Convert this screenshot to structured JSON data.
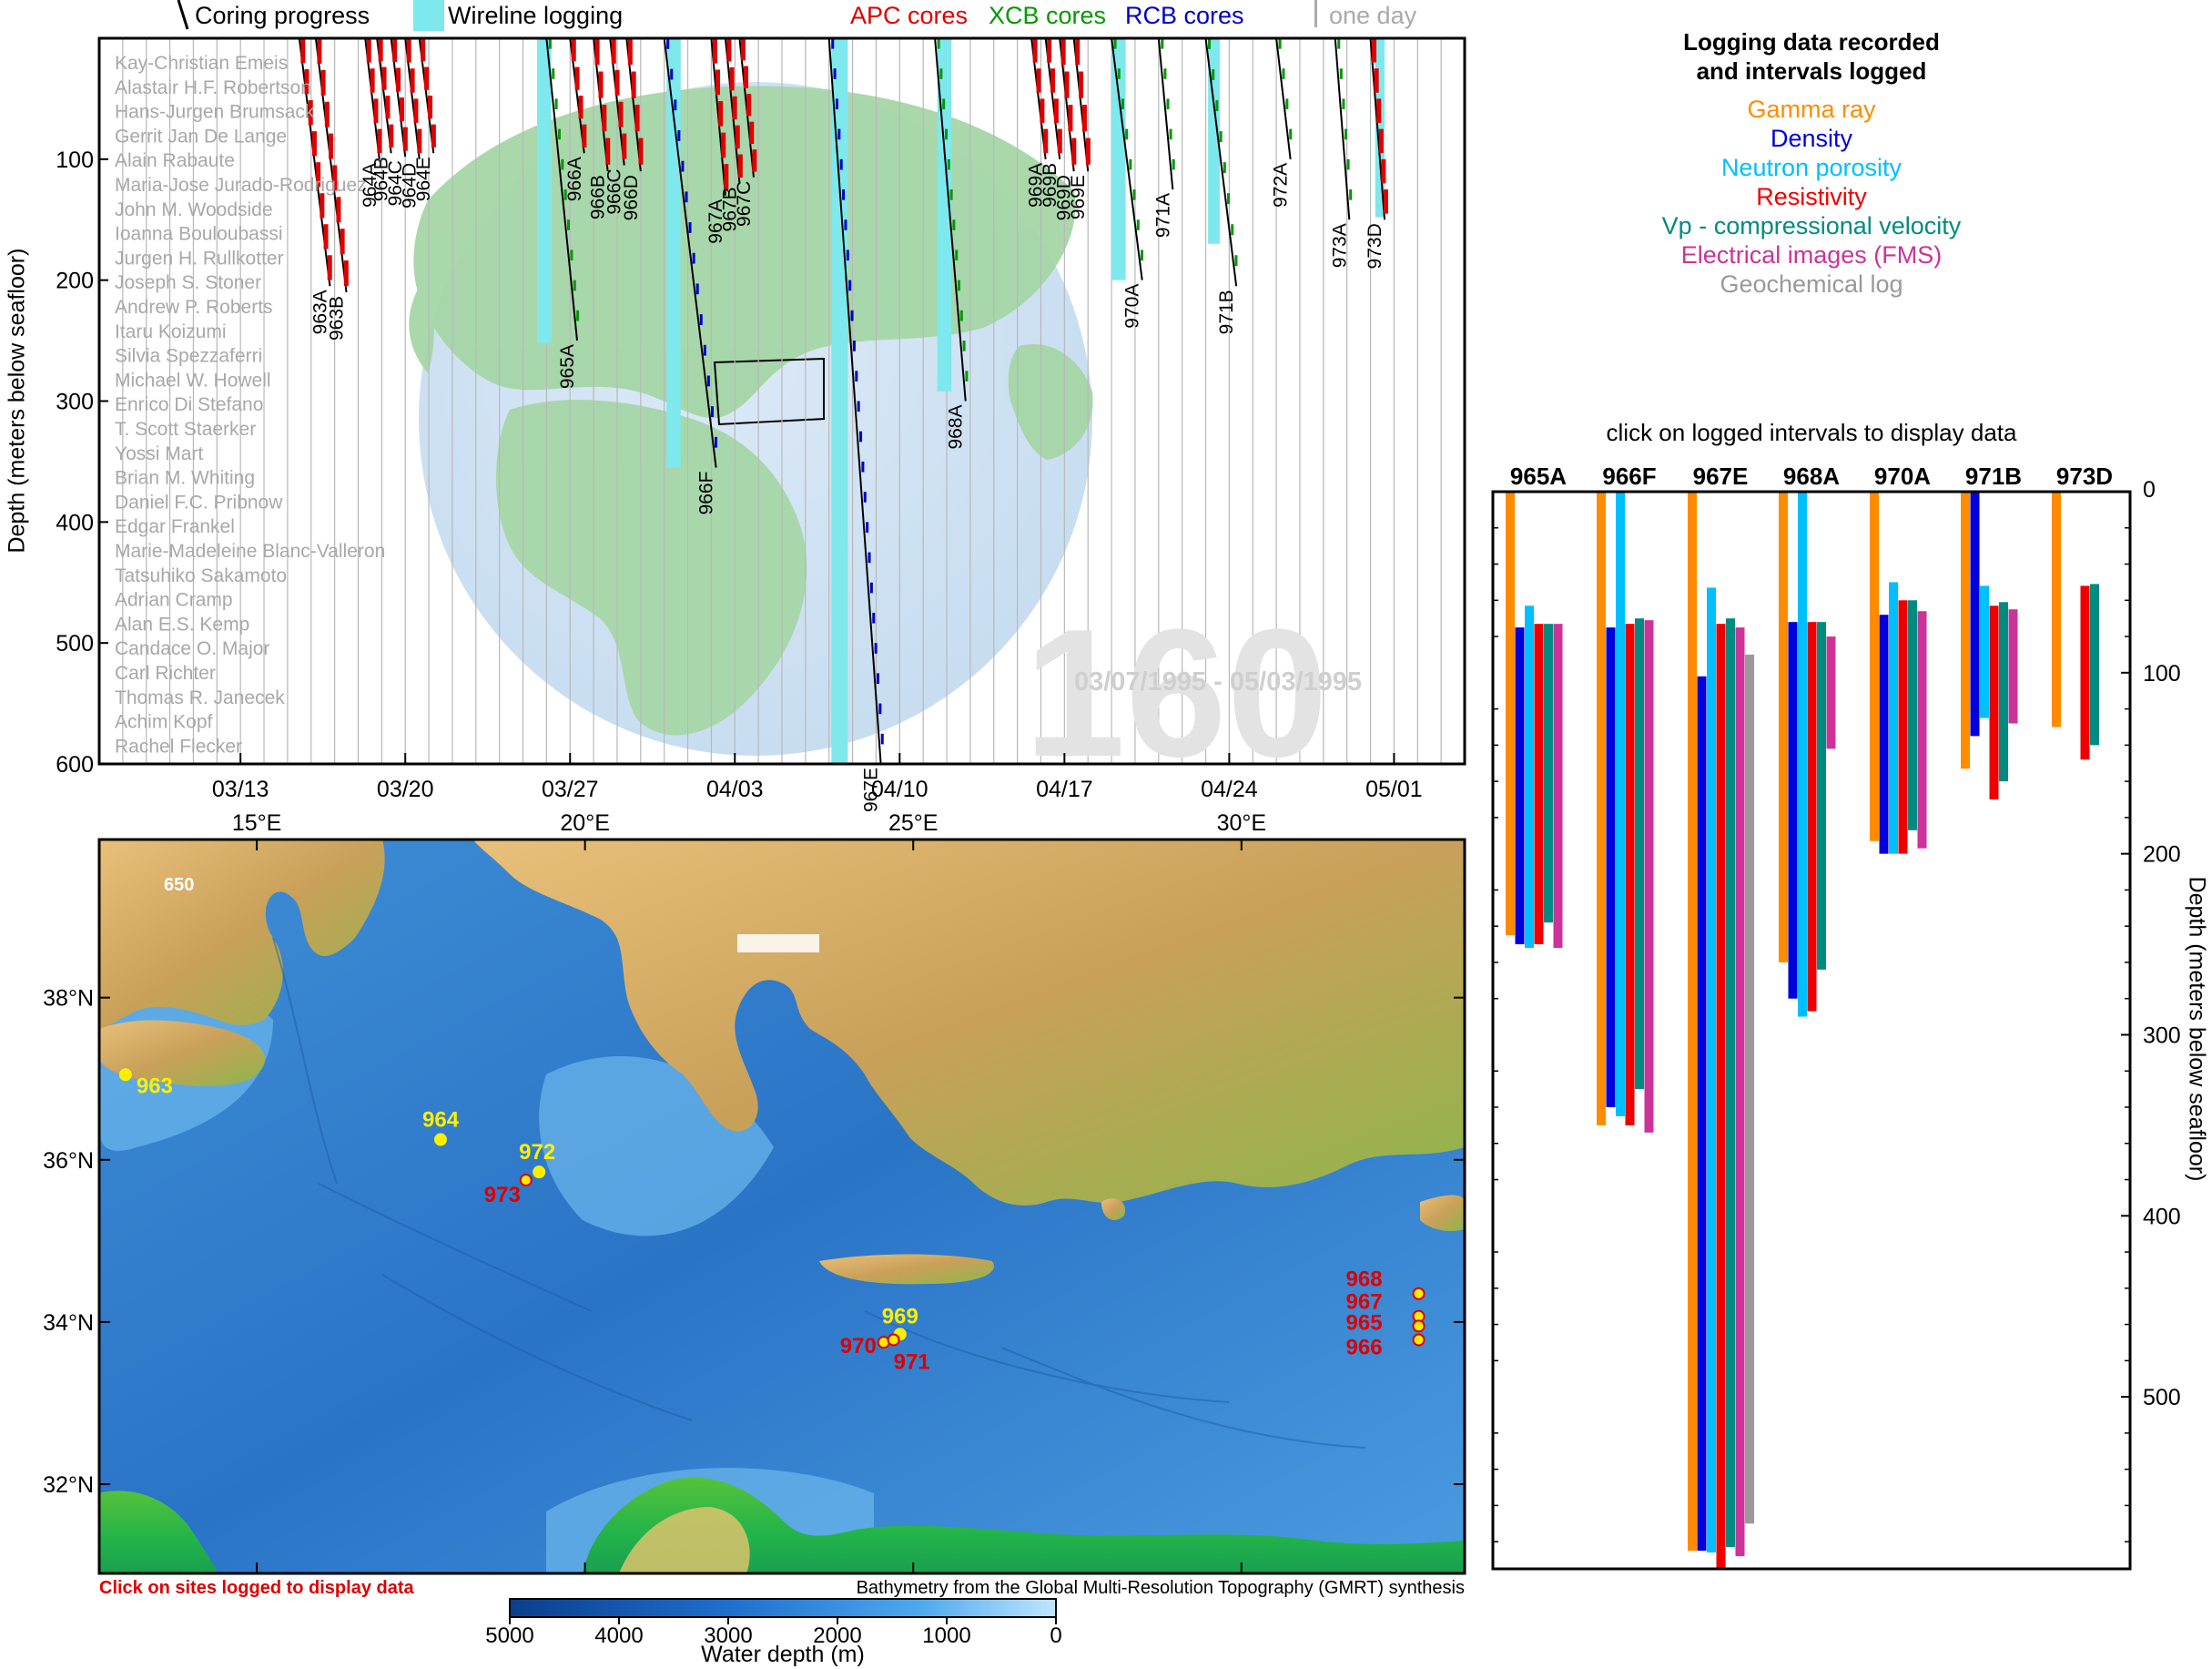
{
  "header": {
    "coring_progress": "Coring progress",
    "wireline_logging": "Wireline logging",
    "apc": "APC cores",
    "xcb": "XCB cores",
    "rcb": "RCB cores",
    "one_day": "one day",
    "colors": {
      "apc": "#e00000",
      "xcb": "#009900",
      "rcb": "#0000cc",
      "wireline": "#7fe8ec",
      "one_day": "#aaaaaa"
    }
  },
  "leg": {
    "number": "160",
    "dates": "03/07/1995 - 05/03/1995"
  },
  "scientists": [
    "Kay-Christian Emeis",
    "Alastair H.F. Robertson",
    "Hans-Jurgen Brumsack",
    "Gerrit Jan De Lange",
    "Alain Rabaute",
    "Maria-Jose Jurado-Rodriguez",
    "John M. Woodside",
    "Ioanna Bouloubassi",
    "Jurgen H. Rullkotter",
    "Joseph S. Stoner",
    "Andrew P. Roberts",
    "Itaru Koizumi",
    "Silvia Spezzaferri",
    "Michael W. Howell",
    "Enrico Di Stefano",
    "T. Scott Staerker",
    "Yossi Mart",
    "Brian M. Whiting",
    "Daniel F.C. Pribnow",
    "Edgar Frankel",
    "Marie-Madeleine Blanc-Valleron",
    "Tatsuhiko Sakamoto",
    "Adrian Cramp",
    "Alan E.S. Kemp",
    "Candace O. Major",
    "Carl Richter",
    "Thomas R. Janecek",
    "Achim Kopf",
    "Rachel Flecker"
  ],
  "timeline": {
    "ylabel": "Depth (meters below seafloor)",
    "y_ticks": [
      "100",
      "200",
      "300",
      "400",
      "500",
      "600"
    ],
    "x_ticks": [
      "03/13",
      "03/20",
      "03/27",
      "04/03",
      "04/10",
      "04/17",
      "04/24",
      "05/01"
    ],
    "holes": [
      {
        "name": "963A",
        "day": 8.5,
        "depth": 205
      },
      {
        "name": "963B",
        "day": 9.2,
        "depth": 210
      },
      {
        "name": "964A",
        "day": 11.3,
        "depth": 100
      },
      {
        "name": "964B",
        "day": 11.8,
        "depth": 95
      },
      {
        "name": "964C",
        "day": 12.4,
        "depth": 98
      },
      {
        "name": "964D",
        "day": 13.0,
        "depth": 100
      },
      {
        "name": "964E",
        "day": 13.6,
        "depth": 95
      },
      {
        "name": "965A",
        "day": 19.0,
        "depth": 250
      },
      {
        "name": "966A",
        "day": 20.0,
        "depth": 95
      },
      {
        "name": "966B",
        "day": 21.0,
        "depth": 110
      },
      {
        "name": "966C",
        "day": 21.7,
        "depth": 105
      },
      {
        "name": "966D",
        "day": 22.4,
        "depth": 110
      },
      {
        "name": "966F",
        "day": 24.0,
        "depth": 355
      },
      {
        "name": "967A",
        "day": 26.0,
        "depth": 130
      },
      {
        "name": "967B",
        "day": 26.6,
        "depth": 120
      },
      {
        "name": "967C",
        "day": 27.2,
        "depth": 115
      },
      {
        "name": "967E",
        "day": 31.0,
        "depth": 600
      },
      {
        "name": "968A",
        "day": 35.5,
        "depth": 300
      },
      {
        "name": "969A",
        "day": 39.6,
        "depth": 100
      },
      {
        "name": "969B",
        "day": 40.2,
        "depth": 100
      },
      {
        "name": "969D",
        "day": 40.8,
        "depth": 110
      },
      {
        "name": "969E",
        "day": 41.4,
        "depth": 110
      },
      {
        "name": "970A",
        "day": 43.0,
        "depth": 200
      },
      {
        "name": "971A",
        "day": 45.0,
        "depth": 125
      },
      {
        "name": "971B",
        "day": 47.0,
        "depth": 205
      },
      {
        "name": "972A",
        "day": 50.0,
        "depth": 100
      },
      {
        "name": "973A",
        "day": 52.5,
        "depth": 150
      },
      {
        "name": "973D",
        "day": 54.0,
        "depth": 150
      }
    ],
    "wireline": [
      {
        "start": 18.6,
        "end": 19.2,
        "depth": 252
      },
      {
        "start": 24.1,
        "end": 24.7,
        "depth": 355
      },
      {
        "start": 31.1,
        "end": 31.8,
        "depth": 600
      },
      {
        "start": 35.6,
        "end": 36.2,
        "depth": 292
      },
      {
        "start": 43.0,
        "end": 43.6,
        "depth": 200
      },
      {
        "start": 47.1,
        "end": 47.6,
        "depth": 170
      },
      {
        "start": 54.2,
        "end": 54.6,
        "depth": 148
      }
    ]
  },
  "logging_legend": {
    "title_line1": "Logging data recorded",
    "title_line2": "and intervals logged",
    "items": [
      {
        "label": "Gamma ray",
        "color": "#ff8c00"
      },
      {
        "label": "Density",
        "color": "#0000dd"
      },
      {
        "label": "Neutron porosity",
        "color": "#00bfff"
      },
      {
        "label": "Resistivity",
        "color": "#ee0000"
      },
      {
        "label": "Vp - compressional velocity",
        "color": "#008b80"
      },
      {
        "label": "Electrical images (FMS)",
        "color": "#cc3399"
      },
      {
        "label": "Geochemical log",
        "color": "#999999"
      }
    ],
    "click_hint": "click on logged intervals to display data"
  },
  "chart_data": {
    "type": "bar",
    "ylabel": "Depth (meters below seafloor)",
    "y_ticks": [
      "0",
      "100",
      "200",
      "300",
      "400",
      "500"
    ],
    "ylim": [
      0,
      595
    ],
    "categories": [
      "965A",
      "966F",
      "967E",
      "968A",
      "970A",
      "971B",
      "973D"
    ],
    "series": [
      {
        "name": "Gamma ray",
        "intervals": [
          [
            0,
            245
          ],
          [
            0,
            350
          ],
          [
            0,
            585
          ],
          [
            0,
            260
          ],
          [
            0,
            193
          ],
          [
            0,
            153
          ],
          [
            0,
            130
          ]
        ]
      },
      {
        "name": "Density",
        "intervals": [
          [
            75,
            250
          ],
          [
            75,
            340
          ],
          [
            102,
            585
          ],
          [
            72,
            280
          ],
          [
            68,
            200
          ],
          [
            0,
            135
          ],
          null
        ]
      },
      {
        "name": "Neutron porosity",
        "intervals": [
          [
            63,
            252
          ],
          [
            0,
            345
          ],
          [
            53,
            586
          ],
          [
            0,
            290
          ],
          [
            50,
            200
          ],
          [
            52,
            125
          ],
          null
        ]
      },
      {
        "name": "Resistivity",
        "intervals": [
          [
            73,
            250
          ],
          [
            73,
            350
          ],
          [
            73,
            595
          ],
          [
            72,
            287
          ],
          [
            60,
            200
          ],
          [
            63,
            170
          ],
          [
            52,
            148
          ]
        ]
      },
      {
        "name": "Vp - compressional velocity",
        "intervals": [
          [
            73,
            238
          ],
          [
            70,
            330
          ],
          [
            70,
            583
          ],
          [
            72,
            264
          ],
          [
            60,
            187
          ],
          [
            61,
            160
          ],
          [
            51,
            140
          ]
        ]
      },
      {
        "name": "Electrical images (FMS)",
        "intervals": [
          [
            73,
            252
          ],
          [
            71,
            354
          ],
          [
            75,
            588
          ],
          [
            80,
            142
          ],
          [
            66,
            197
          ],
          [
            65,
            128
          ],
          null
        ]
      },
      {
        "name": "Geochemical log",
        "intervals": [
          null,
          null,
          [
            90,
            570
          ],
          null,
          null,
          null,
          null
        ]
      }
    ]
  },
  "map": {
    "lon_ticks": [
      "15°E",
      "20°E",
      "25°E",
      "30°E"
    ],
    "lat_ticks": [
      "38°N",
      "36°N",
      "34°N",
      "32°N"
    ],
    "label_650": "650",
    "sites": [
      {
        "name": "963",
        "lon": 13.0,
        "lat": 37.05,
        "color": "#ffee00"
      },
      {
        "name": "964",
        "lon": 17.8,
        "lat": 36.25,
        "color": "#ffee00"
      },
      {
        "name": "972",
        "lon": 19.3,
        "lat": 35.85,
        "color": "#ffee00"
      },
      {
        "name": "973",
        "lon": 19.1,
        "lat": 35.75,
        "color": "#dd0000"
      },
      {
        "name": "969",
        "lon": 24.8,
        "lat": 33.85,
        "color": "#ffee00"
      },
      {
        "name": "970",
        "lon": 24.55,
        "lat": 33.75,
        "color": "#dd0000"
      },
      {
        "name": "971",
        "lon": 24.7,
        "lat": 33.78,
        "color": "#dd0000"
      },
      {
        "name": "968",
        "lon": 32.7,
        "lat": 34.35,
        "color": "#dd0000"
      },
      {
        "name": "967",
        "lon": 32.7,
        "lat": 34.07,
        "color": "#dd0000"
      },
      {
        "name": "965",
        "lon": 32.7,
        "lat": 33.95,
        "color": "#dd0000"
      },
      {
        "name": "966",
        "lon": 32.7,
        "lat": 33.78,
        "color": "#dd0000"
      }
    ],
    "click_hint": "Click on sites logged to display data",
    "attribution": "Bathymetry from the Global Multi-Resolution Topography (GMRT) synthesis"
  },
  "colorbar": {
    "ticks": [
      "5000",
      "4000",
      "3000",
      "2000",
      "1000",
      "0"
    ],
    "label": "Water depth (m)"
  }
}
